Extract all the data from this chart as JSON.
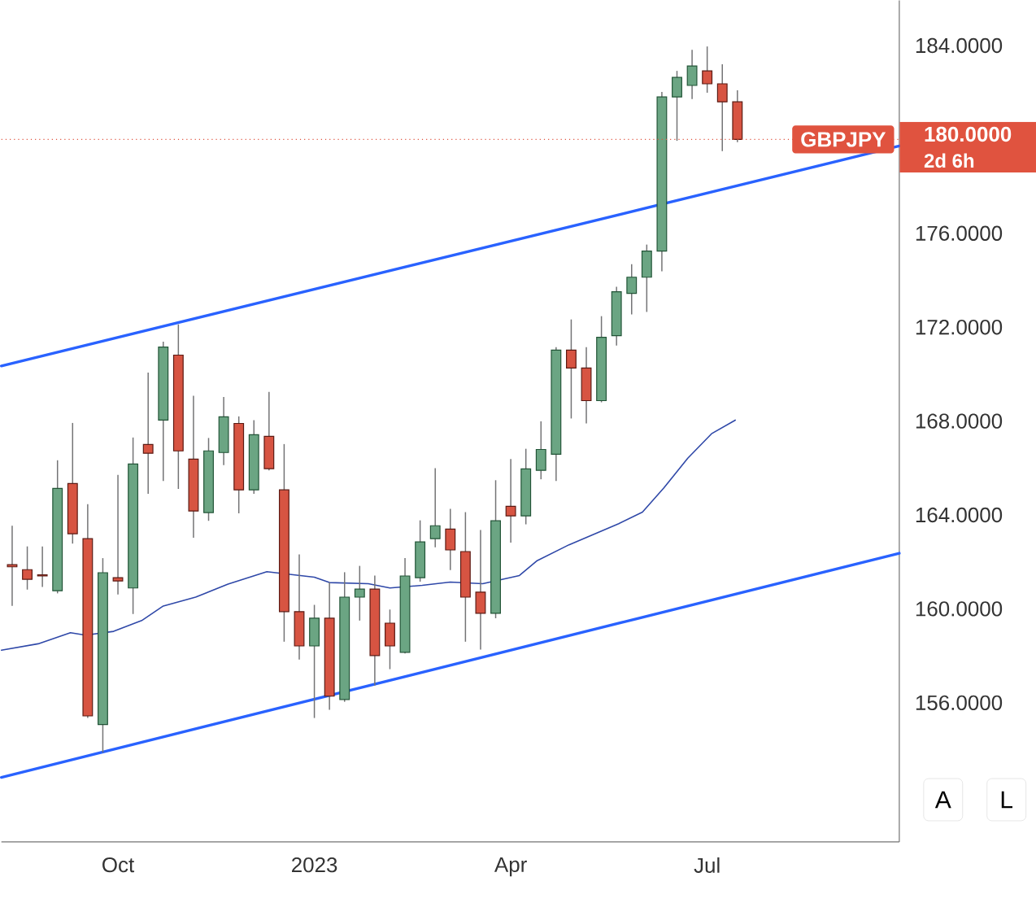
{
  "chart_data": {
    "type": "candlestick",
    "xlim": [
      "2022-08-10",
      "2023-09-30"
    ],
    "ylim": [
      150.07,
      185.92
    ],
    "xticks": [
      {
        "value": "2022-10-03",
        "label": "Oct"
      },
      {
        "value": "2023-01-02",
        "label": "2023"
      },
      {
        "value": "2023-04-03",
        "label": "Apr"
      },
      {
        "value": "2023-07-03",
        "label": "Jul"
      }
    ],
    "yticks": [
      {
        "value": 156,
        "label": "156.0000"
      },
      {
        "value": 160,
        "label": "160.0000"
      },
      {
        "value": 164,
        "label": "164.0000"
      },
      {
        "value": 168,
        "label": "168.0000"
      },
      {
        "value": 172,
        "label": "172.0000"
      },
      {
        "value": 176,
        "label": "176.0000"
      },
      {
        "value": 184,
        "label": "184.0000"
      }
    ],
    "grid": false,
    "ref_lines": [
      {
        "axis": "y",
        "value": 180,
        "label": "180.0000",
        "color": "#e0533f",
        "line_style": "dotted"
      }
    ],
    "annotations": [
      "GBPJPY",
      "2d 6h",
      "A",
      "L"
    ],
    "series": [
      {
        "type": "line",
        "color": "#2962ff",
        "x": [
          "2022-08-10",
          "2023-09-30"
        ],
        "values": [
          170.35,
          179.72
        ]
      },
      {
        "type": "line",
        "color": "#2962ff",
        "x": [
          "2022-08-10",
          "2023-09-30"
        ],
        "values": [
          152.82,
          162.37
        ]
      },
      {
        "type": "line",
        "color": "#2f48a8",
        "x": [
          "2022-08-10",
          "2022-08-27",
          "2022-09-11",
          "2022-09-18",
          "2022-10-01",
          "2022-10-14",
          "2022-10-24",
          "2022-11-08",
          "2022-11-23",
          "2022-12-11",
          "2023-01-02",
          "2023-01-09",
          "2023-01-27",
          "2023-02-06",
          "2023-02-21",
          "2023-03-06",
          "2023-03-21",
          "2023-04-07",
          "2023-04-15",
          "2023-04-30",
          "2023-05-23",
          "2023-06-03",
          "2023-06-13",
          "2023-06-24",
          "2023-07-05",
          "2023-07-16"
        ],
        "values": [
          158.24,
          158.51,
          158.98,
          158.88,
          159.04,
          159.5,
          160.12,
          160.5,
          161.05,
          161.58,
          161.35,
          161.12,
          161.07,
          160.89,
          161.0,
          161.14,
          161.07,
          161.42,
          162.04,
          162.73,
          163.63,
          164.12,
          165.16,
          166.42,
          167.46,
          168.04
        ]
      },
      {
        "x": [
          "2022-08-15",
          "2022-08-22",
          "2022-08-29",
          "2022-09-05",
          "2022-09-12",
          "2022-09-19",
          "2022-09-26",
          "2022-10-03",
          "2022-10-10",
          "2022-10-17",
          "2022-10-24",
          "2022-10-31",
          "2022-11-07",
          "2022-11-14",
          "2022-11-21",
          "2022-11-28",
          "2022-12-05",
          "2022-12-12",
          "2022-12-19",
          "2022-12-26",
          "2023-01-02",
          "2023-01-09",
          "2023-01-16",
          "2023-01-23",
          "2023-01-30",
          "2023-02-06",
          "2023-02-13",
          "2023-02-20",
          "2023-02-27",
          "2023-03-06",
          "2023-03-13",
          "2023-03-20",
          "2023-03-27",
          "2023-04-03",
          "2023-04-10",
          "2023-04-17",
          "2023-04-24",
          "2023-05-01",
          "2023-05-08",
          "2023-05-15",
          "2023-05-22",
          "2023-05-29",
          "2023-06-05",
          "2023-06-12",
          "2023-06-19",
          "2023-06-26",
          "2023-07-03",
          "2023-07-10",
          "2023-07-17"
        ],
        "ohlc": [
          [
            161.88,
            163.54,
            160.13,
            161.79
          ],
          [
            161.67,
            162.66,
            160.82,
            161.26
          ],
          [
            161.45,
            162.66,
            160.93,
            161.4
          ],
          [
            160.77,
            166.33,
            160.66,
            165.13
          ],
          [
            165.34,
            167.92,
            162.78,
            163.2
          ],
          [
            162.99,
            164.46,
            155.35,
            155.44
          ],
          [
            155.07,
            162.16,
            153.88,
            161.54
          ],
          [
            161.33,
            165.71,
            160.61,
            161.19
          ],
          [
            160.89,
            167.3,
            159.78,
            166.17
          ],
          [
            167.0,
            170.07,
            164.9,
            166.63
          ],
          [
            168.04,
            171.38,
            165.45,
            171.15
          ],
          [
            170.81,
            172.12,
            165.11,
            166.73
          ],
          [
            166.38,
            169.08,
            163.03,
            164.17
          ],
          [
            164.1,
            167.28,
            163.75,
            166.73
          ],
          [
            166.66,
            169.03,
            166.12,
            168.18
          ],
          [
            167.9,
            168.2,
            164.07,
            165.07
          ],
          [
            165.07,
            168.04,
            164.9,
            167.42
          ],
          [
            167.35,
            169.24,
            165.9,
            165.97
          ],
          [
            165.07,
            167.02,
            158.6,
            159.88
          ],
          [
            159.88,
            162.32,
            157.84,
            158.42
          ],
          [
            158.42,
            160.17,
            155.35,
            159.6
          ],
          [
            159.6,
            161.12,
            155.7,
            156.28
          ],
          [
            156.14,
            161.56,
            156.04,
            160.5
          ],
          [
            160.5,
            161.83,
            159.5,
            160.84
          ],
          [
            160.84,
            161.42,
            156.73,
            158.01
          ],
          [
            159.39,
            159.97,
            157.43,
            158.42
          ],
          [
            158.15,
            162.16,
            158.1,
            161.4
          ],
          [
            161.33,
            163.77,
            161.16,
            162.85
          ],
          [
            162.99,
            165.99,
            162.62,
            163.54
          ],
          [
            163.4,
            164.26,
            161.65,
            162.51
          ],
          [
            162.44,
            164.12,
            158.6,
            160.5
          ],
          [
            160.71,
            163.36,
            158.26,
            159.81
          ],
          [
            159.81,
            165.48,
            159.6,
            163.75
          ],
          [
            164.37,
            166.38,
            162.82,
            163.96
          ],
          [
            163.96,
            166.82,
            163.6,
            165.96
          ],
          [
            165.9,
            167.99,
            165.52,
            166.79
          ],
          [
            166.59,
            171.15,
            165.45,
            171.02
          ],
          [
            171.02,
            172.33,
            168.11,
            170.26
          ],
          [
            170.26,
            171.15,
            167.9,
            168.87
          ],
          [
            168.87,
            172.47,
            168.8,
            171.57
          ],
          [
            171.64,
            173.72,
            171.22,
            173.51
          ],
          [
            173.44,
            174.68,
            172.54,
            174.13
          ],
          [
            174.13,
            175.52,
            172.65,
            175.24
          ],
          [
            175.24,
            182.02,
            174.38,
            181.81
          ],
          [
            181.81,
            182.92,
            179.94,
            182.64
          ],
          [
            182.3,
            183.82,
            181.72,
            183.13
          ],
          [
            182.92,
            183.96,
            181.99,
            182.37
          ],
          [
            182.37,
            183.2,
            179.5,
            181.6
          ],
          [
            181.6,
            182.09,
            179.88,
            180.0
          ]
        ]
      }
    ]
  }
}
